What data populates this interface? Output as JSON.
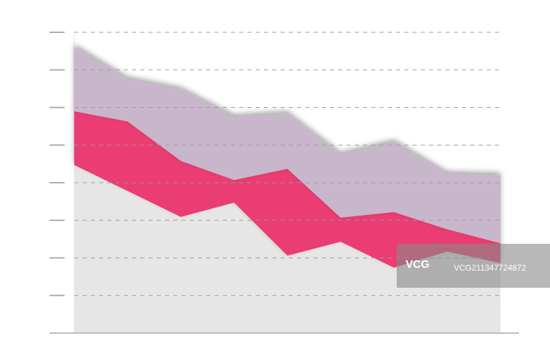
{
  "chart_data": {
    "type": "area",
    "stacked": true,
    "categories": [
      null,
      null,
      null,
      null,
      null,
      null,
      null,
      null,
      null
    ],
    "series": [
      {
        "color": "#e6e6e6",
        "values": [
          4.47,
          3.78,
          3.09,
          3.47,
          2.06,
          2.43,
          1.74,
          2.17,
          1.86
        ]
      },
      {
        "color": "#ea3c73",
        "values": [
          1.43,
          1.85,
          1.49,
          0.6,
          2.31,
          0.64,
          1.48,
          0.59,
          0.53
        ]
      },
      {
        "color": "#c8b6cb",
        "values": [
          1.72,
          1.13,
          1.9,
          1.68,
          1.47,
          1.68,
          1.86,
          1.48,
          1.81
        ]
      }
    ],
    "ylim": [
      0,
      8
    ],
    "yticks": [
      0,
      1,
      2,
      3,
      4,
      5,
      6,
      7,
      8
    ],
    "grid": true
  },
  "watermark": {
    "logo": "VCG",
    "id": "VCG211347724872"
  }
}
